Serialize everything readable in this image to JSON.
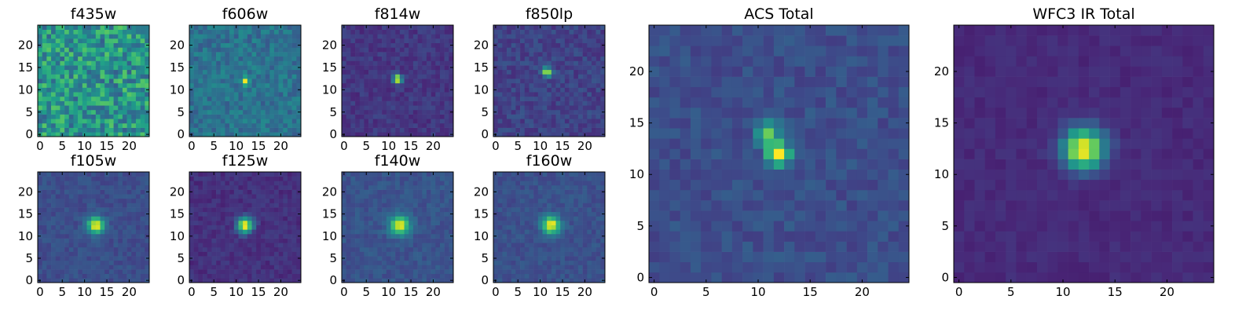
{
  "figure": {
    "colormap": "viridis",
    "colormap_stops": [
      "#440154",
      "#482878",
      "#3e4989",
      "#31688e",
      "#26828e",
      "#1f9e89",
      "#35b779",
      "#6ece58",
      "#b5de2b",
      "#fde725"
    ]
  },
  "chart_data": [
    {
      "type": "heatmap",
      "title": "f435w",
      "grid": [
        25,
        25
      ],
      "xlim": [
        0,
        24
      ],
      "ylim": [
        0,
        24
      ],
      "xticks": [
        0,
        5,
        10,
        15,
        20
      ],
      "yticks": [
        0,
        5,
        10,
        15,
        20
      ],
      "background_level": 0.52,
      "noise": 0.22,
      "peak": null,
      "peak_level": 0,
      "psf_sigma": 0
    },
    {
      "type": "heatmap",
      "title": "f606w",
      "grid": [
        25,
        25
      ],
      "xlim": [
        0,
        24
      ],
      "ylim": [
        0,
        24
      ],
      "xticks": [
        0,
        5,
        10,
        15,
        20
      ],
      "yticks": [
        0,
        5,
        10,
        15,
        20
      ],
      "background_level": 0.38,
      "noise": 0.1,
      "peak": [
        12,
        12
      ],
      "peak_level": 0.95,
      "psf_sigma": 0.6
    },
    {
      "type": "heatmap",
      "title": "f814w",
      "grid": [
        25,
        25
      ],
      "xlim": [
        0,
        24
      ],
      "ylim": [
        0,
        24
      ],
      "xticks": [
        0,
        5,
        10,
        15,
        20
      ],
      "yticks": [
        0,
        5,
        10,
        15,
        20
      ],
      "background_level": 0.16,
      "noise": 0.06,
      "peak": [
        12,
        12.5
      ],
      "peak_level": 1.0,
      "psf_sigma": 0.7
    },
    {
      "type": "heatmap",
      "title": "f850lp",
      "grid": [
        25,
        25
      ],
      "xlim": [
        0,
        24
      ],
      "ylim": [
        0,
        24
      ],
      "xticks": [
        0,
        5,
        10,
        15,
        20
      ],
      "yticks": [
        0,
        5,
        10,
        15,
        20
      ],
      "background_level": 0.2,
      "noise": 0.07,
      "peak": [
        11.5,
        14
      ],
      "peak_level": 1.0,
      "psf_sigma": 0.7
    },
    {
      "type": "heatmap",
      "title": "ACS Total",
      "grid": [
        25,
        25
      ],
      "xlim": [
        0,
        24
      ],
      "ylim": [
        0,
        24
      ],
      "xticks": [
        0,
        5,
        10,
        15,
        20
      ],
      "yticks": [
        0,
        5,
        10,
        15,
        20
      ],
      "background_level": 0.24,
      "noise": 0.06,
      "peak": [
        12,
        12
      ],
      "peak_level": 1.0,
      "psf_sigma": 0.8,
      "secondary_peak": [
        11,
        14
      ],
      "secondary_level": 0.72
    },
    {
      "type": "heatmap",
      "title": "f105w",
      "grid": [
        25,
        25
      ],
      "xlim": [
        0,
        24
      ],
      "ylim": [
        0,
        24
      ],
      "xticks": [
        0,
        5,
        10,
        15,
        20
      ],
      "yticks": [
        0,
        5,
        10,
        15,
        20
      ],
      "background_level": 0.24,
      "noise": 0.05,
      "peak": [
        12.5,
        12.5
      ],
      "peak_level": 1.0,
      "psf_sigma": 1.3
    },
    {
      "type": "heatmap",
      "title": "f125w",
      "grid": [
        25,
        25
      ],
      "xlim": [
        0,
        24
      ],
      "ylim": [
        0,
        24
      ],
      "xticks": [
        0,
        5,
        10,
        15,
        20
      ],
      "yticks": [
        0,
        5,
        10,
        15,
        20
      ],
      "background_level": 0.14,
      "noise": 0.05,
      "peak": [
        12,
        12.5
      ],
      "peak_level": 1.0,
      "psf_sigma": 1.2
    },
    {
      "type": "heatmap",
      "title": "f140w",
      "grid": [
        25,
        25
      ],
      "xlim": [
        0,
        24
      ],
      "ylim": [
        0,
        24
      ],
      "xticks": [
        0,
        5,
        10,
        15,
        20
      ],
      "yticks": [
        0,
        5,
        10,
        15,
        20
      ],
      "background_level": 0.26,
      "noise": 0.05,
      "peak": [
        12.5,
        12.5
      ],
      "peak_level": 1.0,
      "psf_sigma": 1.5
    },
    {
      "type": "heatmap",
      "title": "f160w",
      "grid": [
        25,
        25
      ],
      "xlim": [
        0,
        24
      ],
      "ylim": [
        0,
        24
      ],
      "xticks": [
        0,
        5,
        10,
        15,
        20
      ],
      "yticks": [
        0,
        5,
        10,
        15,
        20
      ],
      "background_level": 0.25,
      "noise": 0.05,
      "peak": [
        12.5,
        12.5
      ],
      "peak_level": 1.0,
      "psf_sigma": 1.4
    },
    {
      "type": "heatmap",
      "title": "WFC3 IR Total",
      "grid": [
        25,
        25
      ],
      "xlim": [
        0,
        24
      ],
      "ylim": [
        0,
        24
      ],
      "xticks": [
        0,
        5,
        10,
        15,
        20
      ],
      "yticks": [
        0,
        5,
        10,
        15,
        20
      ],
      "background_level": 0.12,
      "noise": 0.03,
      "peak": [
        12,
        12.5
      ],
      "peak_level": 1.0,
      "psf_sigma": 1.4
    }
  ]
}
